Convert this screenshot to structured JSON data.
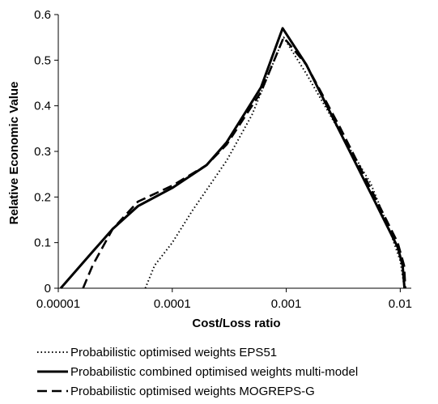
{
  "chart_data": {
    "type": "line",
    "title": "",
    "xlabel": "Cost/Loss ratio",
    "ylabel": "Relative Economic Value",
    "x_scale": "log",
    "xlim": [
      1e-05,
      0.0125
    ],
    "ylim": [
      0,
      0.6
    ],
    "x_ticks": [
      1e-05,
      0.0001,
      0.001,
      0.01
    ],
    "x_tick_labels": [
      "0.00001",
      "0.0001",
      "0.001",
      "0.01"
    ],
    "y_ticks": [
      0,
      0.1,
      0.2,
      0.3,
      0.4,
      0.5,
      0.6
    ],
    "y_tick_labels": [
      "0",
      "0.1",
      "0.2",
      "0.3",
      "0.4",
      "0.5",
      "0.6"
    ],
    "grid": false,
    "legend_position": "bottom",
    "series": [
      {
        "name": "Probabilistic optimised weights EPS51",
        "style": "dotted",
        "color": "#000000",
        "x": [
          5.8e-05,
          7e-05,
          0.0001,
          0.00015,
          0.0003,
          0.0005,
          0.00095,
          0.0015,
          0.003,
          0.0055,
          0.008,
          0.01,
          0.0109
        ],
        "y": [
          0,
          0.05,
          0.1,
          0.17,
          0.28,
          0.38,
          0.55,
          0.47,
          0.34,
          0.23,
          0.13,
          0.06,
          0
        ]
      },
      {
        "name": "Probabilistic combined optimised weights multi-model",
        "style": "solid",
        "color": "#000000",
        "x": [
          1.05e-05,
          2e-05,
          3e-05,
          5e-05,
          0.0001,
          0.0002,
          0.0003,
          0.0006,
          0.00093,
          0.0015,
          0.003,
          0.006,
          0.0095,
          0.0105,
          0.0109
        ],
        "y": [
          0,
          0.08,
          0.13,
          0.18,
          0.22,
          0.27,
          0.32,
          0.44,
          0.57,
          0.49,
          0.34,
          0.19,
          0.09,
          0.05,
          0
        ]
      },
      {
        "name": "Probabilistic optimised weights MOGREPS-G",
        "style": "dashed",
        "color": "#000000",
        "x": [
          1.65e-05,
          2e-05,
          3e-05,
          5e-05,
          0.0001,
          0.0002,
          0.0003,
          0.0006,
          0.00095,
          0.0015,
          0.003,
          0.006,
          0.0095,
          0.0108,
          0.0111
        ],
        "y": [
          0,
          0.05,
          0.13,
          0.19,
          0.225,
          0.27,
          0.315,
          0.43,
          0.55,
          0.49,
          0.35,
          0.2,
          0.1,
          0.05,
          0
        ]
      }
    ]
  }
}
